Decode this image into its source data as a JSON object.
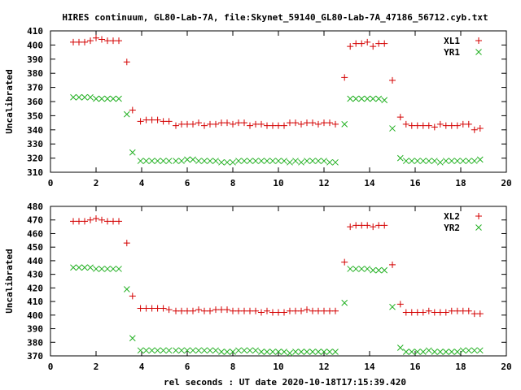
{
  "title": "HIRES continuum, GL80-Lab-7A, file:Skynet_59140_GL80-Lab-7A_47186_56712.cyb.txt",
  "colors": {
    "series_a": "#d40000",
    "series_b": "#22b022",
    "axis": "#000000"
  },
  "chart_data": [
    {
      "type": "scatter",
      "ylabel": "Uncalibrated",
      "xlabel": "",
      "xlim": [
        0,
        20
      ],
      "ylim": [
        310,
        410
      ],
      "xticks": [
        "0",
        "2",
        "4",
        "6",
        "8",
        "10",
        "12",
        "14",
        "16",
        "18",
        "20"
      ],
      "yticks": [
        "310",
        "320",
        "330",
        "340",
        "350",
        "360",
        "370",
        "380",
        "390",
        "400",
        "410"
      ],
      "legend_position": "top-right",
      "grid": false,
      "series": [
        {
          "name": "XL1",
          "marker": "plus",
          "x": [
            1.0,
            1.25,
            1.5,
            1.75,
            2.0,
            2.25,
            2.5,
            2.75,
            3.0,
            3.35,
            3.6,
            3.95,
            4.2,
            4.45,
            4.7,
            4.95,
            5.2,
            5.5,
            5.75,
            6.0,
            6.25,
            6.5,
            6.75,
            7.0,
            7.25,
            7.5,
            7.75,
            8.0,
            8.25,
            8.5,
            8.75,
            9.0,
            9.25,
            9.5,
            9.75,
            10.0,
            10.25,
            10.5,
            10.75,
            11.0,
            11.25,
            11.5,
            11.75,
            12.0,
            12.25,
            12.5,
            12.9,
            13.15,
            13.4,
            13.65,
            13.9,
            14.15,
            14.4,
            14.65,
            15.0,
            15.35,
            15.6,
            15.85,
            16.1,
            16.35,
            16.6,
            16.85,
            17.1,
            17.35,
            17.6,
            17.85,
            18.1,
            18.35,
            18.6,
            18.85
          ],
          "y": [
            402,
            402,
            402,
            403,
            405,
            404,
            403,
            403,
            403,
            388,
            354,
            346,
            347,
            347,
            347,
            346,
            346,
            343,
            344,
            344,
            344,
            345,
            343,
            344,
            344,
            345,
            345,
            344,
            345,
            345,
            343,
            344,
            344,
            343,
            343,
            343,
            343,
            345,
            345,
            344,
            345,
            345,
            344,
            345,
            345,
            344,
            377,
            399,
            401,
            401,
            402,
            399,
            401,
            401,
            375,
            349,
            344,
            343,
            343,
            343,
            343,
            342,
            344,
            343,
            343,
            343,
            344,
            344,
            340,
            341
          ]
        },
        {
          "name": "YR1",
          "marker": "cross",
          "x": [
            1.0,
            1.25,
            1.5,
            1.75,
            2.0,
            2.25,
            2.5,
            2.75,
            3.0,
            3.35,
            3.6,
            3.95,
            4.2,
            4.45,
            4.7,
            4.95,
            5.2,
            5.5,
            5.75,
            6.0,
            6.25,
            6.5,
            6.75,
            7.0,
            7.25,
            7.5,
            7.75,
            8.0,
            8.25,
            8.5,
            8.75,
            9.0,
            9.25,
            9.5,
            9.75,
            10.0,
            10.25,
            10.5,
            10.75,
            11.0,
            11.25,
            11.5,
            11.75,
            12.0,
            12.25,
            12.5,
            12.9,
            13.15,
            13.4,
            13.65,
            13.9,
            14.15,
            14.4,
            14.65,
            15.0,
            15.35,
            15.6,
            15.85,
            16.1,
            16.35,
            16.6,
            16.85,
            17.1,
            17.35,
            17.6,
            17.85,
            18.1,
            18.35,
            18.6,
            18.85
          ],
          "y": [
            363,
            363,
            363,
            363,
            362,
            362,
            362,
            362,
            362,
            351,
            324,
            318,
            318,
            318,
            318,
            318,
            318,
            318,
            318,
            319,
            319,
            318,
            318,
            318,
            318,
            317,
            317,
            317,
            318,
            318,
            318,
            318,
            318,
            318,
            318,
            318,
            318,
            317,
            318,
            317,
            318,
            318,
            318,
            318,
            317,
            317,
            344,
            362,
            362,
            362,
            362,
            362,
            362,
            361,
            341,
            320,
            318,
            318,
            318,
            318,
            318,
            318,
            317,
            318,
            318,
            318,
            318,
            318,
            318,
            319
          ]
        }
      ]
    },
    {
      "type": "scatter",
      "ylabel": "Uncalibrated",
      "xlabel": "rel seconds : UT date 2020-10-18T17:15:39.420",
      "xlim": [
        0,
        20
      ],
      "ylim": [
        370,
        480
      ],
      "xticks": [
        "0",
        "2",
        "4",
        "6",
        "8",
        "10",
        "12",
        "14",
        "16",
        "18",
        "20"
      ],
      "yticks": [
        "370",
        "380",
        "390",
        "400",
        "410",
        "420",
        "430",
        "440",
        "450",
        "460",
        "470",
        "480"
      ],
      "legend_position": "top-right",
      "grid": false,
      "series": [
        {
          "name": "XL2",
          "marker": "plus",
          "x": [
            1.0,
            1.25,
            1.5,
            1.75,
            2.0,
            2.25,
            2.5,
            2.75,
            3.0,
            3.35,
            3.6,
            3.95,
            4.2,
            4.45,
            4.7,
            4.95,
            5.2,
            5.5,
            5.75,
            6.0,
            6.25,
            6.5,
            6.75,
            7.0,
            7.25,
            7.5,
            7.75,
            8.0,
            8.25,
            8.5,
            8.75,
            9.0,
            9.25,
            9.5,
            9.75,
            10.0,
            10.25,
            10.5,
            10.75,
            11.0,
            11.25,
            11.5,
            11.75,
            12.0,
            12.25,
            12.5,
            12.9,
            13.15,
            13.4,
            13.65,
            13.9,
            14.15,
            14.4,
            14.65,
            15.0,
            15.35,
            15.6,
            15.85,
            16.1,
            16.35,
            16.6,
            16.85,
            17.1,
            17.35,
            17.6,
            17.85,
            18.1,
            18.35,
            18.6,
            18.85
          ],
          "y": [
            469,
            469,
            469,
            470,
            471,
            470,
            469,
            469,
            469,
            453,
            414,
            405,
            405,
            405,
            405,
            405,
            404,
            403,
            403,
            403,
            403,
            404,
            403,
            403,
            404,
            404,
            404,
            403,
            403,
            403,
            403,
            403,
            402,
            403,
            402,
            402,
            402,
            403,
            403,
            403,
            404,
            403,
            403,
            403,
            403,
            403,
            439,
            465,
            466,
            466,
            466,
            465,
            466,
            466,
            437,
            408,
            402,
            402,
            402,
            402,
            403,
            402,
            402,
            402,
            403,
            403,
            403,
            403,
            401,
            401
          ]
        },
        {
          "name": "YR2",
          "marker": "cross",
          "x": [
            1.0,
            1.25,
            1.5,
            1.75,
            2.0,
            2.25,
            2.5,
            2.75,
            3.0,
            3.35,
            3.6,
            3.95,
            4.2,
            4.45,
            4.7,
            4.95,
            5.2,
            5.5,
            5.75,
            6.0,
            6.25,
            6.5,
            6.75,
            7.0,
            7.25,
            7.5,
            7.75,
            8.0,
            8.25,
            8.5,
            8.75,
            9.0,
            9.25,
            9.5,
            9.75,
            10.0,
            10.25,
            10.5,
            10.75,
            11.0,
            11.25,
            11.5,
            11.75,
            12.0,
            12.25,
            12.5,
            12.9,
            13.15,
            13.4,
            13.65,
            13.9,
            14.15,
            14.4,
            14.65,
            15.0,
            15.35,
            15.6,
            15.85,
            16.1,
            16.35,
            16.6,
            16.85,
            17.1,
            17.35,
            17.6,
            17.85,
            18.1,
            18.35,
            18.6,
            18.85
          ],
          "y": [
            435,
            435,
            435,
            435,
            434,
            434,
            434,
            434,
            434,
            419,
            383,
            374,
            374,
            374,
            374,
            374,
            374,
            374,
            374,
            374,
            374,
            374,
            374,
            374,
            374,
            373,
            373,
            373,
            374,
            374,
            374,
            374,
            373,
            373,
            373,
            373,
            373,
            372,
            373,
            373,
            373,
            373,
            373,
            373,
            373,
            373,
            409,
            434,
            434,
            434,
            434,
            433,
            433,
            433,
            406,
            376,
            373,
            373,
            373,
            373,
            374,
            373,
            373,
            373,
            373,
            373,
            374,
            374,
            374,
            374
          ]
        }
      ]
    }
  ]
}
